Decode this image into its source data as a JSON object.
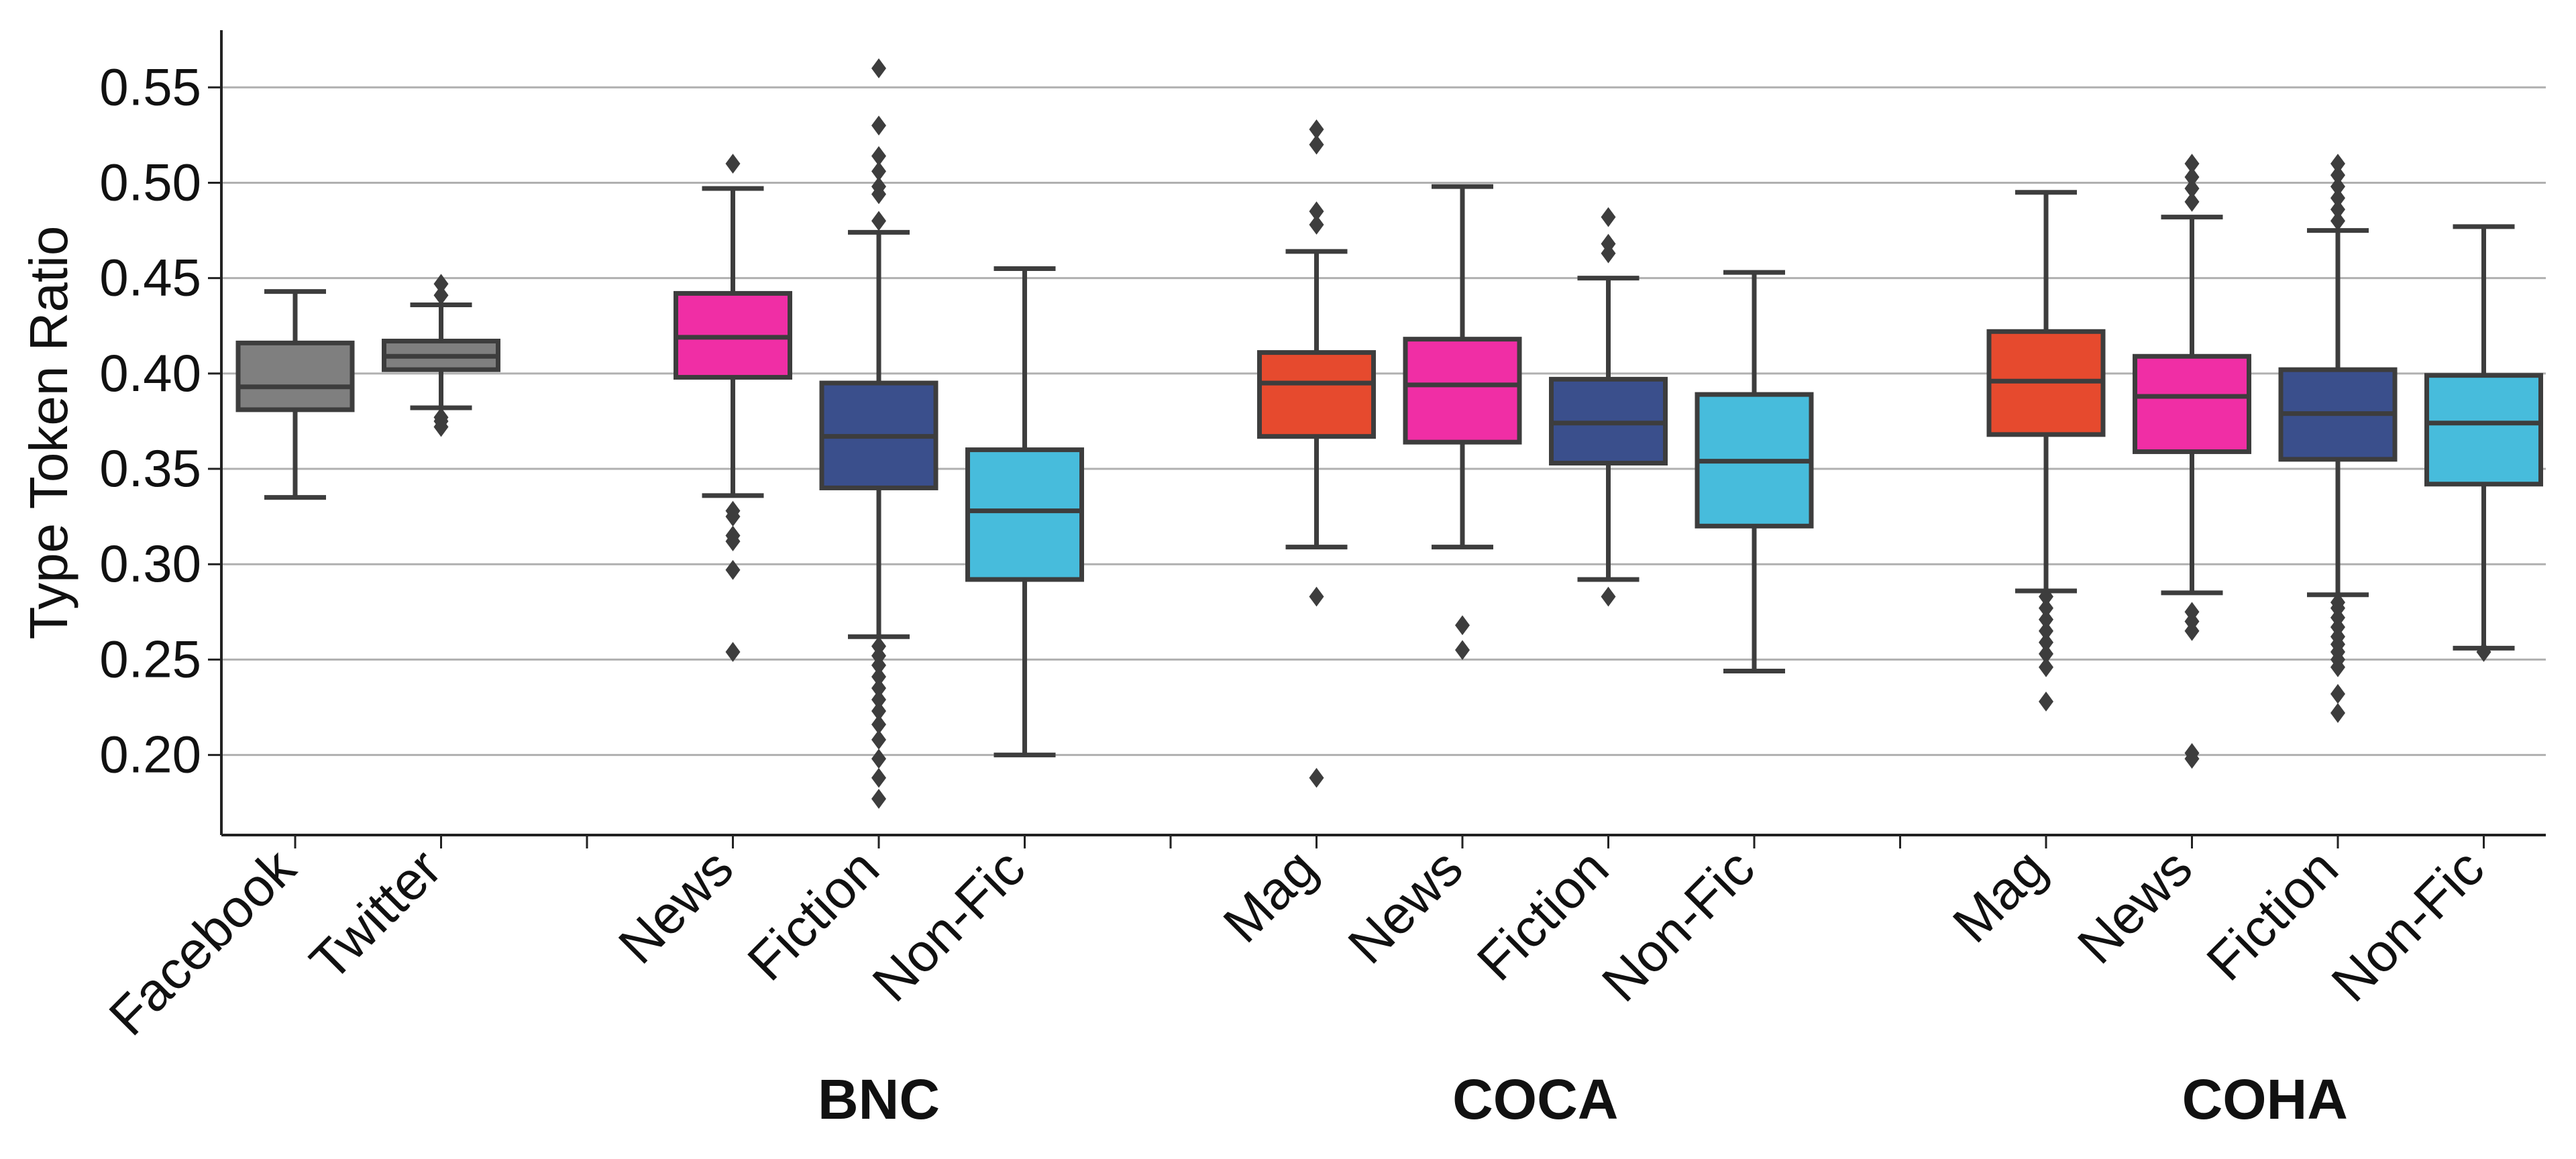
{
  "chart_data": {
    "type": "boxplot",
    "ylabel": "Type Token Ratio",
    "xlabel": "",
    "ylim": [
      0.158,
      0.58
    ],
    "yticks": [
      0.2,
      0.25,
      0.3,
      0.35,
      0.4,
      0.45,
      0.5,
      0.55
    ],
    "ytick_labels": [
      "0.20",
      "0.25",
      "0.30",
      "0.35",
      "0.40",
      "0.45",
      "0.50",
      "0.55"
    ],
    "grid": "horizontal",
    "colors": {
      "social": "#7f7f7f",
      "mag": "#e64a2e",
      "news": "#f02ea5",
      "fiction": "#3a4f8c",
      "nonfic": "#47bcdc",
      "line": "#3d3d3d",
      "grid": "#b0b0b0"
    },
    "groups": [
      {
        "label": "",
        "start": 0,
        "end": 1
      },
      {
        "label": "BNC",
        "start": 3,
        "end": 5
      },
      {
        "label": "COCA",
        "start": 7,
        "end": 10
      },
      {
        "label": "COHA",
        "start": 12,
        "end": 15
      }
    ],
    "separator_ticks": [
      2,
      6,
      11
    ],
    "boxes": [
      {
        "label": "Facebook",
        "pos": 0,
        "color": "social",
        "whislo": 0.335,
        "q1": 0.381,
        "med": 0.393,
        "q3": 0.416,
        "whishi": 0.443,
        "fliers": []
      },
      {
        "label": "Twitter",
        "pos": 1,
        "color": "social",
        "whislo": 0.382,
        "q1": 0.402,
        "med": 0.409,
        "q3": 0.417,
        "whishi": 0.436,
        "fliers": [
          0.372,
          0.375,
          0.377,
          0.441,
          0.447
        ]
      },
      {
        "label": "News",
        "pos": 3,
        "color": "news",
        "whislo": 0.336,
        "q1": 0.398,
        "med": 0.419,
        "q3": 0.442,
        "whishi": 0.497,
        "fliers": [
          0.254,
          0.297,
          0.312,
          0.315,
          0.325,
          0.328,
          0.51
        ]
      },
      {
        "label": "Fiction",
        "pos": 4,
        "color": "fiction",
        "whislo": 0.262,
        "q1": 0.34,
        "med": 0.367,
        "q3": 0.395,
        "whishi": 0.474,
        "fliers": [
          0.177,
          0.188,
          0.198,
          0.208,
          0.216,
          0.223,
          0.229,
          0.235,
          0.241,
          0.247,
          0.252,
          0.257,
          0.48,
          0.494,
          0.498,
          0.506,
          0.514,
          0.53,
          0.56
        ]
      },
      {
        "label": "Non-Fic",
        "pos": 5,
        "color": "nonfic",
        "whislo": 0.2,
        "q1": 0.292,
        "med": 0.328,
        "q3": 0.36,
        "whishi": 0.455,
        "fliers": []
      },
      {
        "label": "Mag",
        "pos": 7,
        "color": "mag",
        "whislo": 0.309,
        "q1": 0.367,
        "med": 0.395,
        "q3": 0.411,
        "whishi": 0.464,
        "fliers": [
          0.188,
          0.283,
          0.478,
          0.485,
          0.52,
          0.528
        ]
      },
      {
        "label": "News",
        "pos": 8,
        "color": "news",
        "whislo": 0.309,
        "q1": 0.364,
        "med": 0.394,
        "q3": 0.418,
        "whishi": 0.498,
        "fliers": [
          0.255,
          0.268
        ]
      },
      {
        "label": "Fiction",
        "pos": 9,
        "color": "fiction",
        "whislo": 0.292,
        "q1": 0.353,
        "med": 0.374,
        "q3": 0.397,
        "whishi": 0.45,
        "fliers": [
          0.283,
          0.463,
          0.468,
          0.482
        ]
      },
      {
        "label": "Non-Fic",
        "pos": 10,
        "color": "nonfic",
        "whislo": 0.244,
        "q1": 0.32,
        "med": 0.354,
        "q3": 0.389,
        "whishi": 0.453,
        "fliers": []
      },
      {
        "label": "Mag",
        "pos": 12,
        "color": "mag",
        "whislo": 0.286,
        "q1": 0.368,
        "med": 0.396,
        "q3": 0.422,
        "whishi": 0.495,
        "fliers": [
          0.228,
          0.246,
          0.253,
          0.259,
          0.265,
          0.271,
          0.277,
          0.283
        ]
      },
      {
        "label": "News",
        "pos": 13,
        "color": "news",
        "whislo": 0.285,
        "q1": 0.359,
        "med": 0.388,
        "q3": 0.409,
        "whishi": 0.482,
        "fliers": [
          0.198,
          0.201,
          0.265,
          0.27,
          0.275,
          0.49,
          0.497,
          0.503,
          0.51
        ]
      },
      {
        "label": "Fiction",
        "pos": 14,
        "color": "fiction",
        "whislo": 0.284,
        "q1": 0.355,
        "med": 0.379,
        "q3": 0.402,
        "whishi": 0.475,
        "fliers": [
          0.222,
          0.232,
          0.246,
          0.25,
          0.254,
          0.258,
          0.262,
          0.267,
          0.272,
          0.277,
          0.28,
          0.48,
          0.486,
          0.492,
          0.498,
          0.504,
          0.51
        ]
      },
      {
        "label": "Non-Fic",
        "pos": 15,
        "color": "nonfic",
        "whislo": 0.256,
        "q1": 0.342,
        "med": 0.374,
        "q3": 0.399,
        "whishi": 0.477,
        "fliers": [
          0.254
        ]
      }
    ]
  }
}
